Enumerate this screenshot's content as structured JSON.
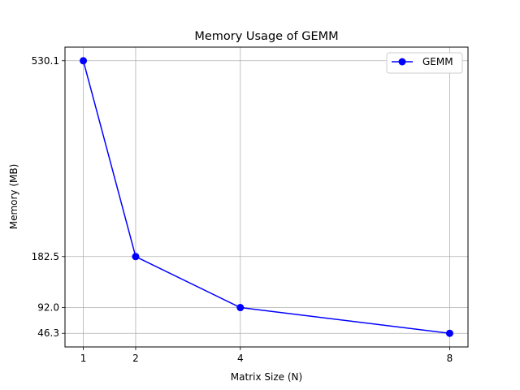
{
  "chart_data": {
    "type": "line",
    "title": "Memory Usage of GEMM",
    "xlabel": "Matrix Size (N)",
    "ylabel": "Memory (MB)",
    "xlim": [
      0.65,
      8.35
    ],
    "ylim": [
      22.1,
      554.3
    ],
    "x_ticks": [
      1,
      2,
      4,
      8
    ],
    "y_ticks": [
      46.3,
      92.0,
      182.5,
      530.1
    ],
    "y_tick_labels": [
      "46.3",
      "92.0",
      "182.5",
      "530.1"
    ],
    "grid": true,
    "legend_position": "top-right",
    "series": [
      {
        "name": "GEMM",
        "color": "#0000ff",
        "marker": "circle",
        "x": [
          1,
          2,
          4,
          8
        ],
        "y": [
          530.1,
          182.5,
          92.0,
          46.3
        ]
      }
    ]
  }
}
